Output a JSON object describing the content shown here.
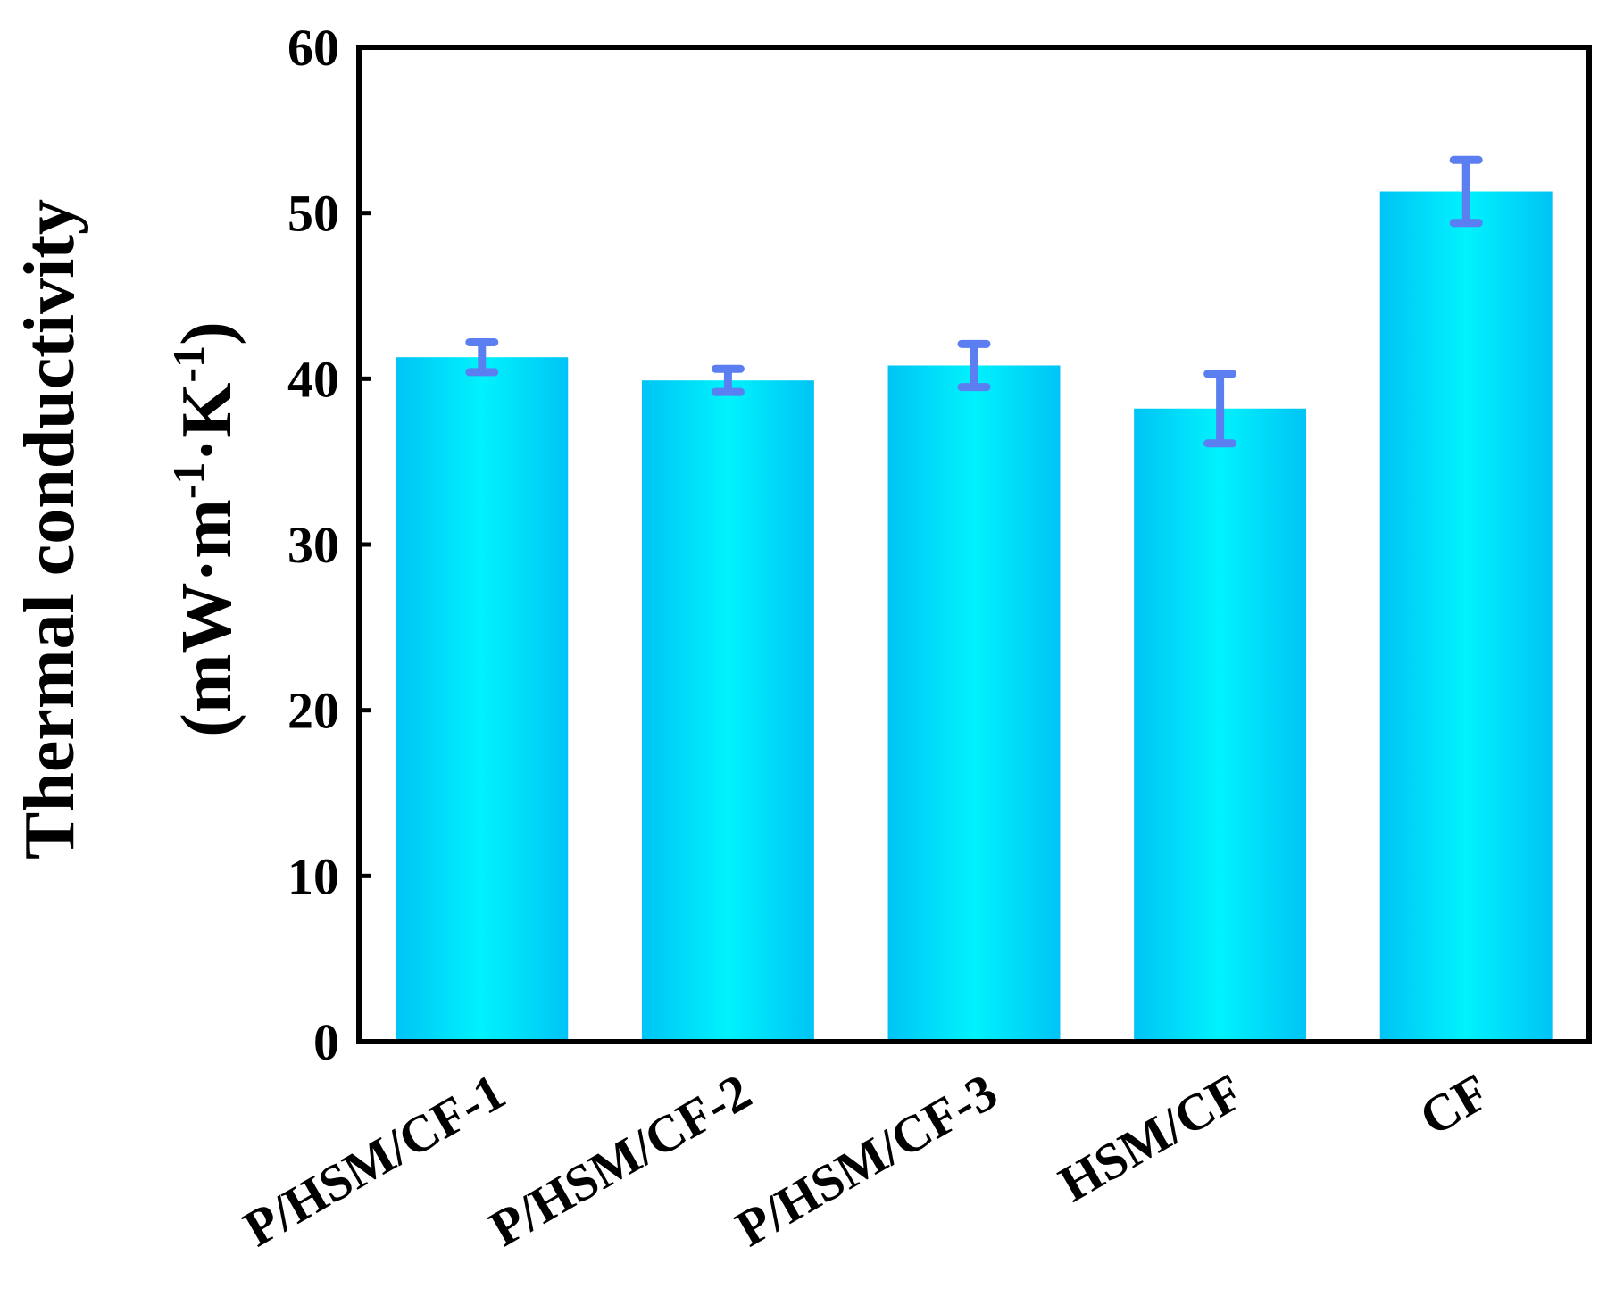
{
  "chart_data": {
    "type": "bar",
    "title": "",
    "xlabel": "",
    "ylabel": "Thermal conductivity",
    "ylabel_unit": {
      "open": "(mW·m",
      "exp1": "-1",
      "mid": "·K",
      "exp2": "-1",
      "close": ")"
    },
    "categories": [
      "P/HSM/CF-1",
      "P/HSM/CF-2",
      "P/HSM/CF-3",
      "HSM/CF",
      "CF"
    ],
    "values": [
      41.3,
      39.9,
      40.8,
      38.2,
      51.3
    ],
    "errors": [
      0.9,
      0.7,
      1.3,
      2.1,
      1.9
    ],
    "ylim": [
      0,
      60
    ],
    "yticks": [
      "0",
      "10",
      "20",
      "30",
      "40",
      "50",
      "60"
    ],
    "grid": false,
    "legend": "none",
    "colors": {
      "bar_edge": "#00c4f5",
      "bar_center": "#00f2fd",
      "error_bar": "#5b7ff0",
      "axis": "#000000"
    }
  }
}
